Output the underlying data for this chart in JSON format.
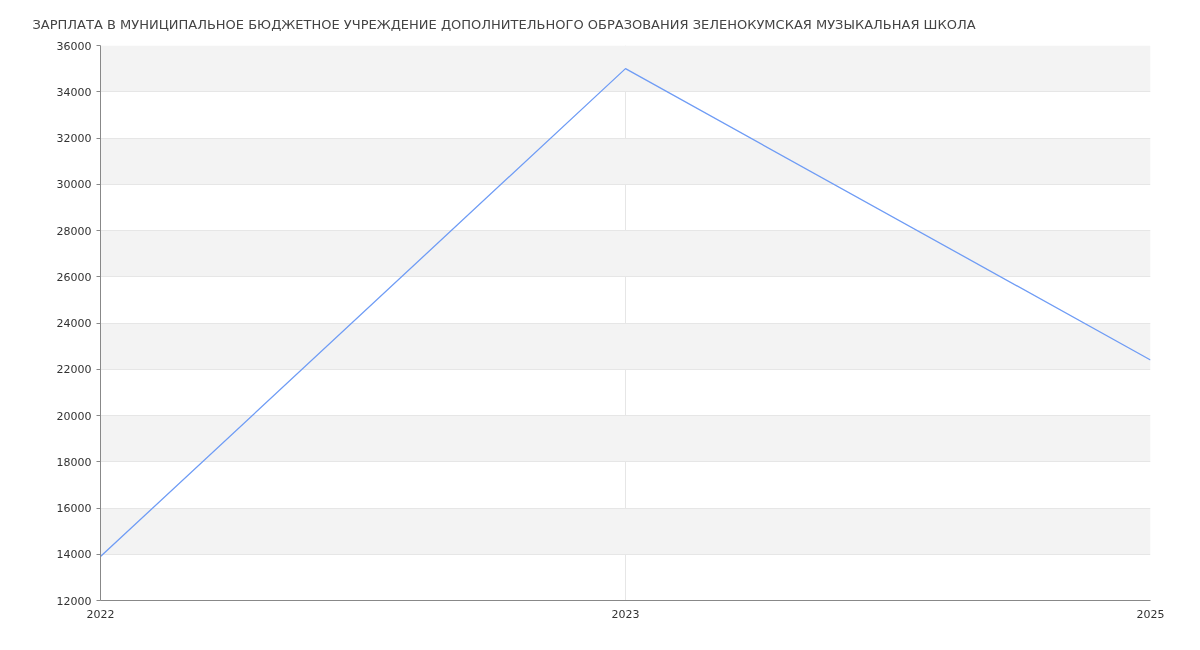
{
  "chart_data": {
    "type": "line",
    "title": "ЗАРПЛАТА В МУНИЦИПАЛЬНОЕ БЮДЖЕТНОЕ УЧРЕЖДЕНИЕ ДОПОЛНИТЕЛЬНОГО ОБРАЗОВАНИЯ ЗЕЛЕНОКУМСКАЯ МУЗЫКАЛЬНАЯ ШКОЛА",
    "categories": [
      "2022",
      "2023",
      "2025"
    ],
    "series": [
      {
        "color": "#6f9cf5",
        "values": [
          13900,
          35000,
          22400
        ]
      }
    ],
    "ylim": [
      12000,
      36000
    ],
    "yticks": [
      12000,
      14000,
      16000,
      18000,
      20000,
      22000,
      24000,
      26000,
      28000,
      30000,
      32000,
      34000,
      36000
    ],
    "grid": true
  }
}
